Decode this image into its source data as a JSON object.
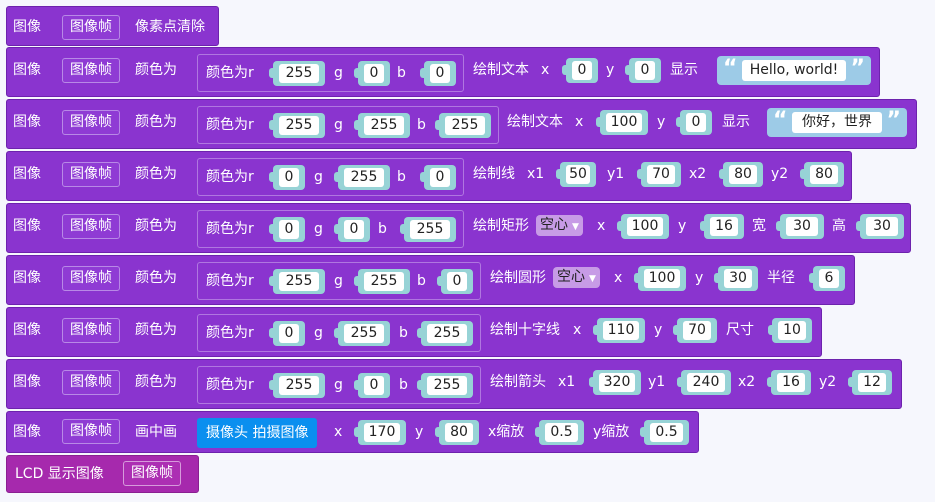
{
  "labels": {
    "image": "图像",
    "frame": "图像帧",
    "clear": "像素点清除",
    "color_is": "颜色为",
    "color_r": "颜色为r",
    "g": "g",
    "b": "b",
    "draw_text": "绘制文本",
    "x": "x",
    "y": "y",
    "show": "显示",
    "draw_line": "绘制线",
    "x1": "x1",
    "y1": "y1",
    "x2": "x2",
    "y2": "y2",
    "draw_rect": "绘制矩形",
    "width": "宽",
    "height": "高",
    "draw_circle": "绘制圆形",
    "radius": "半径",
    "draw_cross": "绘制十字线",
    "size": "尺寸",
    "draw_arrow": "绘制箭头",
    "pip": "画中画",
    "camera_capture": "摄像头 拍摄图像",
    "x_scale": "x缩放",
    "y_scale": "y缩放",
    "lcd_show": "LCD 显示图像",
    "hollow": "空心"
  },
  "rows": {
    "text1": {
      "r": "255",
      "g": "0",
      "b": "0",
      "x": "0",
      "y": "0",
      "text": "Hello, world!"
    },
    "text2": {
      "r": "255",
      "g": "255",
      "b": "255",
      "x": "100",
      "y": "0",
      "text": "你好，世界"
    },
    "line": {
      "r": "0",
      "g": "255",
      "b": "0",
      "x1": "50",
      "y1": "70",
      "x2": "80",
      "y2": "80"
    },
    "rect": {
      "r": "0",
      "g": "0",
      "b": "255",
      "fill": "空心",
      "x": "100",
      "y": "16",
      "w": "30",
      "h": "30"
    },
    "circle": {
      "r": "255",
      "g": "255",
      "b": "0",
      "fill": "空心",
      "x": "100",
      "y": "30",
      "radius": "6"
    },
    "cross": {
      "r": "0",
      "g": "255",
      "b": "255",
      "x": "110",
      "y": "70",
      "size": "10"
    },
    "arrow": {
      "r": "255",
      "g": "0",
      "b": "255",
      "x1": "320",
      "y1": "240",
      "x2": "16",
      "y2": "12"
    },
    "pip": {
      "x": "170",
      "y": "80",
      "xs": "0.5",
      "ys": "0.5"
    }
  },
  "colors": {
    "block_purple": "#8a34cf",
    "lcd_block": "#a629ad",
    "number_field": "#97d3d6",
    "string_block": "#9dcbe7",
    "camera_block": "#0a8fef"
  }
}
